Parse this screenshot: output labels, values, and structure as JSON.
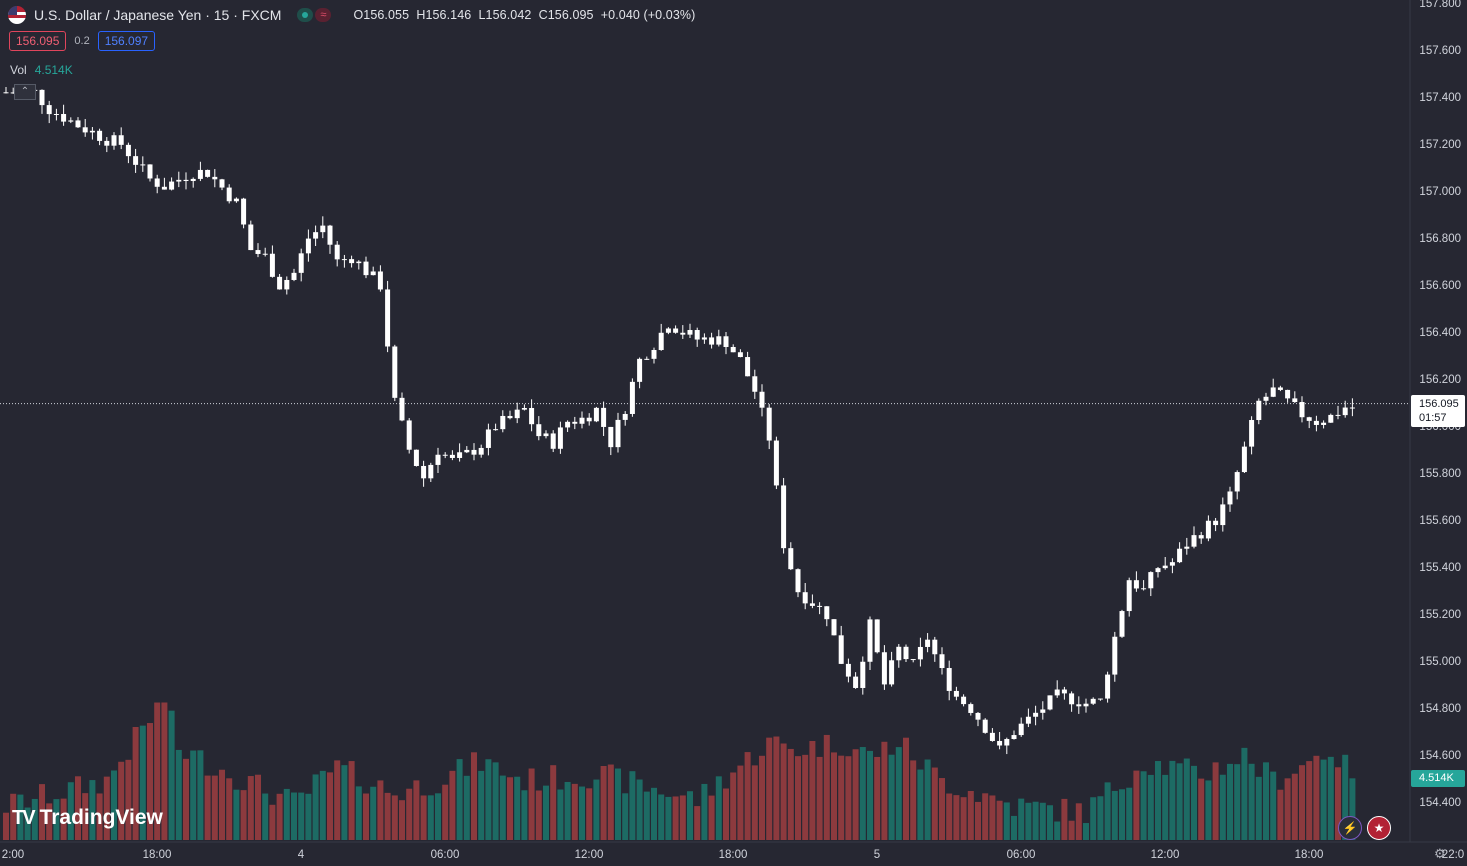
{
  "header": {
    "symbol": "U.S. Dollar / Japanese Yen · 15 · FXCM",
    "open": "O156.055",
    "high": "H156.146",
    "low": "L156.042",
    "close": "C156.095",
    "change": "+0.040 (+0.03%)",
    "market_status_icons": [
      "market-open-icon",
      "delayed-data-icon"
    ]
  },
  "quote": {
    "bid": "156.095",
    "spread": "0.2",
    "ask": "156.097"
  },
  "volume": {
    "label": "Vol",
    "value": "4.514K"
  },
  "current_price_label": {
    "price": "156.095",
    "countdown": "01:57"
  },
  "volume_label": "4.514K",
  "brand": {
    "name": "TradingView",
    "mark": "TV"
  },
  "colors": {
    "background": "#262732",
    "up": "#26a69a",
    "down": "#ef5350",
    "candle": "#ffffff",
    "vol_up": "#1d6b64",
    "vol_down": "#8c3a3e"
  },
  "chart_data": {
    "type": "candlestick",
    "y_ticks": [
      "157.800",
      "157.600",
      "157.400",
      "157.200",
      "157.000",
      "156.800",
      "156.600",
      "156.400",
      "156.200",
      "156.000",
      "155.800",
      "155.600",
      "155.400",
      "155.200",
      "155.000",
      "154.800",
      "154.600",
      "154.400"
    ],
    "ylim": [
      154.2,
      157.8
    ],
    "x_ticks": [
      "2:00",
      "18:00",
      "4",
      "06:00",
      "12:00",
      "18:00",
      "5",
      "06:00",
      "12:00",
      "18:00",
      "22:0"
    ],
    "last_price": 156.095,
    "close_path": [
      [
        0,
        157.42
      ],
      [
        4,
        157.42
      ],
      [
        6,
        157.35
      ],
      [
        10,
        157.28
      ],
      [
        14,
        157.22
      ],
      [
        16,
        157.2
      ],
      [
        20,
        157.05
      ],
      [
        22,
        157.02
      ],
      [
        26,
        157.08
      ],
      [
        28,
        157.08
      ],
      [
        32,
        156.95
      ],
      [
        34,
        156.75
      ],
      [
        36,
        156.72
      ],
      [
        38,
        156.6
      ],
      [
        40,
        156.65
      ],
      [
        42,
        156.8
      ],
      [
        44,
        156.85
      ],
      [
        46,
        156.7
      ],
      [
        48,
        156.72
      ],
      [
        52,
        156.6
      ],
      [
        54,
        156.1
      ],
      [
        56,
        155.9
      ],
      [
        58,
        155.78
      ],
      [
        60,
        155.9
      ],
      [
        62,
        155.85
      ],
      [
        64,
        155.88
      ],
      [
        66,
        155.92
      ],
      [
        68,
        156.0
      ],
      [
        70,
        156.03
      ],
      [
        72,
        156.07
      ],
      [
        74,
        155.96
      ],
      [
        76,
        155.93
      ],
      [
        78,
        156.02
      ],
      [
        80,
        156.03
      ],
      [
        82,
        156.07
      ],
      [
        84,
        155.93
      ],
      [
        86,
        156.08
      ],
      [
        88,
        156.28
      ],
      [
        90,
        156.35
      ],
      [
        92,
        156.44
      ],
      [
        94,
        156.4
      ],
      [
        96,
        156.37
      ],
      [
        98,
        156.37
      ],
      [
        100,
        156.36
      ],
      [
        102,
        156.28
      ],
      [
        104,
        156.15
      ],
      [
        106,
        155.95
      ],
      [
        108,
        155.5
      ],
      [
        110,
        155.3
      ],
      [
        112,
        155.25
      ],
      [
        114,
        155.2
      ],
      [
        116,
        155.0
      ],
      [
        118,
        154.9
      ],
      [
        120,
        155.15
      ],
      [
        122,
        154.9
      ],
      [
        124,
        155.05
      ],
      [
        126,
        154.98
      ],
      [
        128,
        155.1
      ],
      [
        130,
        154.95
      ],
      [
        132,
        154.85
      ],
      [
        134,
        154.8
      ],
      [
        136,
        154.72
      ],
      [
        138,
        154.62
      ],
      [
        140,
        154.7
      ],
      [
        142,
        154.75
      ],
      [
        144,
        154.8
      ],
      [
        146,
        154.85
      ],
      [
        148,
        154.84
      ],
      [
        150,
        154.82
      ],
      [
        152,
        154.83
      ],
      [
        154,
        155.1
      ],
      [
        156,
        155.35
      ],
      [
        158,
        155.3
      ],
      [
        160,
        155.4
      ],
      [
        162,
        155.42
      ],
      [
        164,
        155.5
      ],
      [
        166,
        155.55
      ],
      [
        168,
        155.6
      ],
      [
        170,
        155.7
      ],
      [
        172,
        155.9
      ],
      [
        174,
        156.1
      ],
      [
        176,
        156.15
      ],
      [
        178,
        156.1
      ],
      [
        180,
        156.05
      ],
      [
        182,
        156.02
      ],
      [
        184,
        156.04
      ],
      [
        186,
        156.08
      ]
    ],
    "volume_peaks": [
      [
        0,
        0.1
      ],
      [
        14,
        0.3
      ],
      [
        22,
        0.95
      ],
      [
        24,
        0.55
      ],
      [
        40,
        0.12
      ],
      [
        46,
        0.4
      ],
      [
        54,
        0.2
      ],
      [
        60,
        0.3
      ],
      [
        66,
        0.45
      ],
      [
        72,
        0.3
      ],
      [
        82,
        0.35
      ],
      [
        96,
        0.15
      ],
      [
        106,
        0.6
      ],
      [
        110,
        0.55
      ],
      [
        116,
        0.6
      ],
      [
        120,
        0.5
      ],
      [
        124,
        0.6
      ],
      [
        130,
        0.3
      ],
      [
        140,
        0.1
      ],
      [
        150,
        0.05
      ],
      [
        158,
        0.45
      ],
      [
        166,
        0.35
      ],
      [
        172,
        0.5
      ],
      [
        176,
        0.3
      ],
      [
        184,
        0.55
      ],
      [
        186,
        0.4
      ]
    ]
  }
}
